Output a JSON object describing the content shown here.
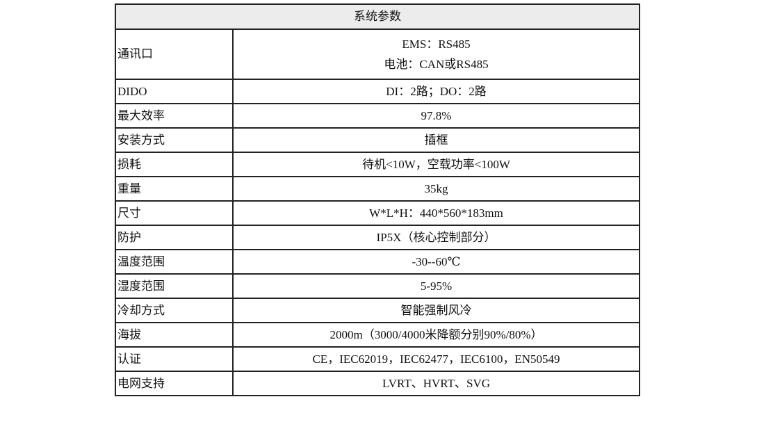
{
  "title": "系统参数",
  "comm": {
    "label": "通讯口",
    "lines": [
      "EMS：RS485",
      "电池：CAN或RS485"
    ]
  },
  "rows": [
    {
      "label": "DIDO",
      "value": "DI：2路；DO：2路"
    },
    {
      "label": "最大效率",
      "value": "97.8%"
    },
    {
      "label": "安装方式",
      "value": "插框"
    },
    {
      "label": "损耗",
      "value": "待机<10W，空载功率<100W"
    },
    {
      "label": "重量",
      "value": "35kg"
    },
    {
      "label": "尺寸",
      "value": "W*L*H：440*560*183mm"
    },
    {
      "label": "防护",
      "value": "IP5X（核心控制部分）"
    },
    {
      "label": "温度范围",
      "value": "-30--60℃"
    },
    {
      "label": "湿度范围",
      "value": "5-95%"
    },
    {
      "label": "冷却方式",
      "value": "智能强制风冷"
    },
    {
      "label": "海拔",
      "value": "2000m（3000/4000米降额分别90%/80%）"
    },
    {
      "label": "认证",
      "value": "CE，IEC62019，IEC62477，IEC6100，EN50549"
    },
    {
      "label": "电网支持",
      "value": "LVRT、HVRT、SVG"
    }
  ]
}
